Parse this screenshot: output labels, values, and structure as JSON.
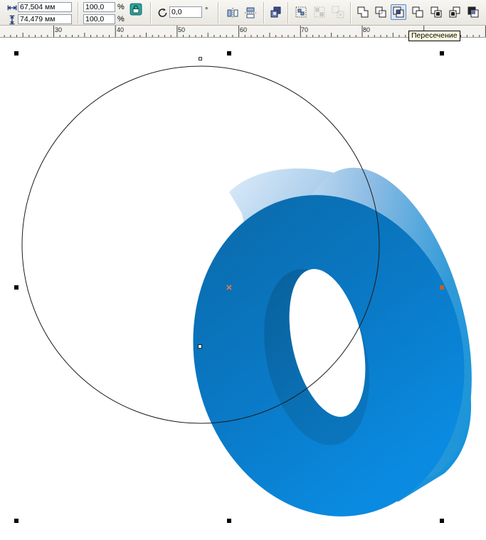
{
  "toolbar": {
    "width_value": "67,504 мм",
    "height_value": "74,479 мм",
    "scale_x": "100,0",
    "scale_y": "100,0",
    "percent_symbol": "%",
    "rotation_value": "0,0",
    "degree_symbol": "°",
    "intersect_tooltip": "Пересечение"
  },
  "ruler": {
    "labels": [
      "30",
      "40",
      "50",
      "60",
      "70",
      "80"
    ]
  },
  "icons": {
    "width": "width-icon",
    "height": "height-icon",
    "lock": "lock-ratio-icon",
    "rotate": "rotate-icon",
    "mirror_h": "mirror-horizontal-icon",
    "mirror_v": "mirror-vertical-icon",
    "arrange": "arrange-icon",
    "group": "group-icon",
    "ungroup": "ungroup-icon",
    "ungroup_all": "ungroup-all-icon",
    "weld": "weld-icon",
    "trim": "trim-icon",
    "intersect": "intersect-icon",
    "simplify": "simplify-icon",
    "front_minus_back": "front-minus-back-icon",
    "back_minus_front": "back-minus-front-icon",
    "boundary": "boundary-icon"
  },
  "colors": {
    "ring_face_top": "#0a6fb0",
    "ring_face_bottom": "#0a86dc",
    "ring_side_light": "#d6e8f8",
    "ring_side_dark": "#0894dc",
    "selection_center": "#e87a4a",
    "selection_handle_accent": "#c0602a"
  }
}
